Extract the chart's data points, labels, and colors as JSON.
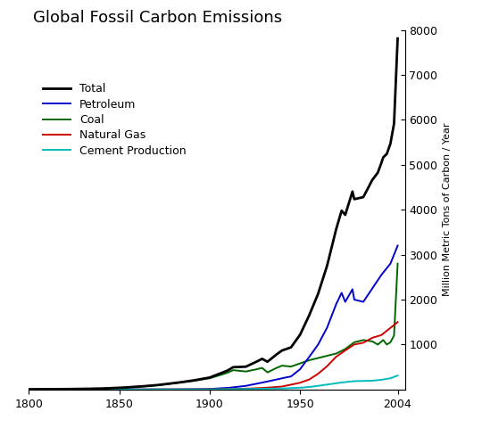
{
  "title": "Global Fossil Carbon Emissions",
  "ylabel": "Million Metric Tons of Carbon / Year",
  "xlim": [
    1800,
    2008
  ],
  "ylim": [
    0,
    8000
  ],
  "xticks": [
    1800,
    1850,
    1900,
    1950,
    2004
  ],
  "yticks": [
    1000,
    2000,
    3000,
    4000,
    5000,
    6000,
    7000,
    8000
  ],
  "series": {
    "Total": {
      "color": "#000000",
      "lw": 2.0
    },
    "Petroleum": {
      "color": "#0000cc",
      "lw": 1.4
    },
    "Coal": {
      "color": "#006600",
      "lw": 1.4
    },
    "Natural Gas": {
      "color": "#cc0000",
      "lw": 1.4
    },
    "Cement Production": {
      "color": "#00bbbb",
      "lw": 1.4
    }
  },
  "legend_fontsize": 9,
  "background_color": "#ffffff",
  "coal_keyframes": {
    "1800": 3,
    "1810": 5,
    "1820": 8,
    "1830": 13,
    "1840": 20,
    "1850": 35,
    "1860": 60,
    "1870": 90,
    "1880": 135,
    "1890": 185,
    "1900": 250,
    "1905": 310,
    "1910": 375,
    "1913": 430,
    "1920": 400,
    "1925": 440,
    "1929": 480,
    "1932": 380,
    "1937": 480,
    "1940": 530,
    "1945": 510,
    "1950": 580,
    "1955": 650,
    "1960": 700,
    "1965": 750,
    "1970": 800,
    "1975": 900,
    "1980": 1050,
    "1985": 1100,
    "1990": 1070,
    "1995": 1050,
    "2000": 1100,
    "2004": 2800
  },
  "petroleum_keyframes": {
    "1800": 0,
    "1850": 0,
    "1860": 0.5,
    "1870": 1,
    "1880": 3,
    "1890": 6,
    "1900": 12,
    "1910": 35,
    "1920": 80,
    "1930": 160,
    "1940": 250,
    "1945": 290,
    "1950": 450,
    "1955": 720,
    "1960": 1000,
    "1965": 1380,
    "1970": 1900,
    "1973": 2150,
    "1975": 1950,
    "1979": 2230,
    "1980": 2000,
    "1985": 1950,
    "1990": 2250,
    "1995": 2550,
    "2000": 2800,
    "2004": 3200
  },
  "natgas_keyframes": {
    "1800": 0,
    "1900": 2,
    "1910": 8,
    "1920": 18,
    "1930": 35,
    "1940": 65,
    "1950": 150,
    "1955": 220,
    "1960": 350,
    "1965": 520,
    "1970": 730,
    "1975": 870,
    "1980": 1000,
    "1985": 1040,
    "1990": 1150,
    "1995": 1210,
    "2000": 1370,
    "2004": 1500
  },
  "cement_keyframes": {
    "1800": 0,
    "1850": 0,
    "1880": 0.5,
    "1900": 2,
    "1910": 6,
    "1920": 9,
    "1930": 18,
    "1940": 22,
    "1950": 38,
    "1955": 55,
    "1960": 80,
    "1965": 110,
    "1970": 140,
    "1975": 165,
    "1980": 185,
    "1985": 190,
    "1990": 195,
    "1995": 215,
    "2000": 250,
    "2004": 310
  }
}
